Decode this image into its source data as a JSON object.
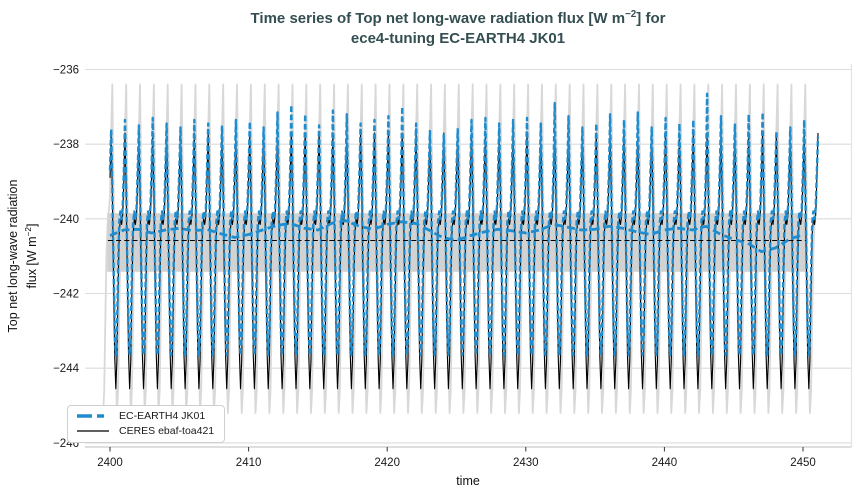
{
  "title": {
    "line1_pre": "Time series of Top net long-wave radiation flux [W m",
    "line1_sup": "−2",
    "line1_post": "] for",
    "line2": "ece4-tuning EC-EARTH4 JK01"
  },
  "axes": {
    "xlabel": "time",
    "ylabel_line1": "Top net long-wave radiation",
    "ylabel_line2_pre": "flux [W m",
    "ylabel_line2_sup": "−2",
    "ylabel_line2_post": "]"
  },
  "legend": {
    "items": [
      {
        "label": "EC-EARTH4 JK01",
        "color": "#1e8ccd",
        "style": "thick-dashed"
      },
      {
        "label": "CERES ebaf-toa421",
        "color": "#000000",
        "style": "thin-solid"
      }
    ]
  },
  "colors": {
    "model_blue": "#1e8ccd",
    "obs_black": "#000000",
    "gray_series": "#d8d8d8",
    "band": "#d2d2d2",
    "grid": "#dcdcdc",
    "right_spine": "#e4e4e4",
    "bottom_spine": "#c9c9c9",
    "tick": "#333333",
    "title_text": "#344e52",
    "label_text": "#1a1a1a"
  },
  "chart_data": {
    "type": "line",
    "title": "Time series of Top net long-wave radiation flux [W m−2] for ece4-tuning EC-EARTH4 JK01",
    "xlabel": "time",
    "ylabel": "Top net long-wave radiation flux [W m−2]",
    "xlim": [
      2398.2,
      2453.5
    ],
    "ylim": [
      -246,
      -236
    ],
    "xticks": [
      2400,
      2410,
      2420,
      2430,
      2440,
      2450
    ],
    "yticks": [
      -236,
      -238,
      -240,
      -242,
      -244,
      -246
    ],
    "grid": "horizontal",
    "legend_position": "lower left",
    "series": [
      {
        "name": "EC-EARTH4 JK01",
        "role": "model-monthly",
        "color": "#1e8ccd",
        "linestyle": "dashed",
        "linewidth": 2.4,
        "x_start": 2400.0,
        "x_end": 2451.084,
        "points_per_year": 12,
        "seasonal_template": [
          -238.7,
          -237.45,
          -239.2,
          -241.2,
          -243.0,
          -243.65,
          -243.1,
          -241.4,
          -240.1,
          -239.8,
          -240.0,
          -239.7
        ],
        "peak_month": 1,
        "anomaly_year_start": 2400,
        "peak_anomalies_by_year": [
          -0.15,
          0.1,
          -0.05,
          0.15,
          0,
          -0.1,
          0.1,
          0,
          -0.05,
          0.1,
          0.05,
          -0.1,
          0.3,
          0.5,
          0.25,
          -0.05,
          0.35,
          0.25,
          0,
          0.1,
          0.2,
          0.45,
          0,
          -0.2,
          -0.3,
          -0.15,
          0.1,
          0.15,
          0,
          0.1,
          0.15,
          0,
          0.55,
          0.2,
          -0.1,
          0,
          0.25,
          0.1,
          0.3,
          -0.1,
          0.15,
          0,
          0.1,
          0.8,
          0.2,
          0,
          0.25,
          0.3,
          -0.2,
          -0.1,
          0.1,
          -0.35
        ]
      },
      {
        "name": "CERES ebaf-toa421",
        "role": "reference-climatology",
        "color": "#000000",
        "linestyle": "solid",
        "linewidth": 1.1,
        "x_start": 2400.0,
        "x_end": 2451.084,
        "points_per_year": 12,
        "seasonal_template": [
          -238.9,
          -237.7,
          -239.3,
          -241.5,
          -243.6,
          -244.55,
          -243.8,
          -241.9,
          -240.4,
          -240.0,
          -240.15,
          -239.9
        ]
      },
      {
        "name": "background-envelope",
        "role": "background-gray-cycle",
        "color": "#d8d8d8",
        "linestyle": "solid",
        "linewidth": 1.8,
        "x_start": 2399.5,
        "x_end": 2451.0,
        "points_per_year": 12,
        "seasonal_template": [
          -239.4,
          -237.6,
          -236.4,
          -238.9,
          -241.6,
          -243.8,
          -245.2,
          -244.6,
          -242.6,
          -240.9,
          -240.1,
          -239.8
        ]
      }
    ],
    "reference_band": {
      "high": -239.85,
      "low": -241.42,
      "x_start": 2399.8,
      "x_end": 2450.2,
      "color": "#d2d2d2"
    },
    "reference_mean": {
      "value": -240.58,
      "color": "#000000",
      "linestyle": "dashed",
      "x_start": 2399.85,
      "x_end": 2450.2
    },
    "model_running_mean": {
      "color": "#1e8ccd",
      "linestyle": "dashed",
      "linewidth": 2.8,
      "x_start": 2400,
      "x_step": 1,
      "values": [
        -240.45,
        -240.3,
        -240.28,
        -240.38,
        -240.3,
        -240.25,
        -240.32,
        -240.28,
        -240.4,
        -240.5,
        -240.42,
        -240.3,
        -240.18,
        -240.12,
        -240.25,
        -240.3,
        -240.12,
        -240.05,
        -240.2,
        -240.28,
        -240.15,
        -240.08,
        -240.12,
        -240.3,
        -240.5,
        -240.58,
        -240.45,
        -240.35,
        -240.28,
        -240.32,
        -240.38,
        -240.3,
        -240.15,
        -240.22,
        -240.3,
        -240.28,
        -240.2,
        -240.25,
        -240.35,
        -240.42,
        -240.3,
        -240.25,
        -240.3,
        -240.2,
        -240.4,
        -240.55,
        -240.65,
        -240.88,
        -240.78,
        -240.55,
        -240.42
      ]
    }
  }
}
